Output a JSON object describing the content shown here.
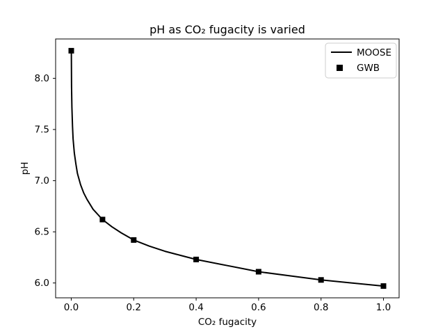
{
  "chart_data": {
    "type": "line",
    "title": "pH as CO₂ fugacity is varied",
    "xlabel": "CO₂ fugacity",
    "ylabel": "pH",
    "xlim": [
      -0.05,
      1.05
    ],
    "ylim": [
      5.855,
      8.385
    ],
    "grid": false,
    "background": "#ffffff",
    "foreground": "#000000",
    "xticks": [
      {
        "value": 0.0,
        "label": "0.0"
      },
      {
        "value": 0.2,
        "label": "0.2"
      },
      {
        "value": 0.4,
        "label": "0.4"
      },
      {
        "value": 0.6,
        "label": "0.6"
      },
      {
        "value": 0.8,
        "label": "0.8"
      },
      {
        "value": 1.0,
        "label": "1.0"
      }
    ],
    "yticks": [
      {
        "value": 6.0,
        "label": "6.0"
      },
      {
        "value": 6.5,
        "label": "6.5"
      },
      {
        "value": 7.0,
        "label": "7.0"
      },
      {
        "value": 7.5,
        "label": "7.5"
      },
      {
        "value": 8.0,
        "label": "8.0"
      }
    ],
    "legend": {
      "position": "upper right",
      "edge_color": "#cccccc",
      "entries": [
        {
          "name": "MOOSE",
          "type": "line"
        },
        {
          "name": "GWB",
          "type": "square-marker"
        }
      ]
    },
    "series": [
      {
        "name": "MOOSE",
        "type": "line",
        "color": "#000000",
        "points": [
          [
            0.0003,
            8.27
          ],
          [
            0.001,
            7.92
          ],
          [
            0.002,
            7.72
          ],
          [
            0.004,
            7.53
          ],
          [
            0.006,
            7.41
          ],
          [
            0.01,
            7.27
          ],
          [
            0.015,
            7.16
          ],
          [
            0.02,
            7.07
          ],
          [
            0.03,
            6.96
          ],
          [
            0.04,
            6.88
          ],
          [
            0.05,
            6.82
          ],
          [
            0.07,
            6.72
          ],
          [
            0.1,
            6.62
          ],
          [
            0.13,
            6.55
          ],
          [
            0.16,
            6.49
          ],
          [
            0.2,
            6.42
          ],
          [
            0.25,
            6.36
          ],
          [
            0.3,
            6.31
          ],
          [
            0.35,
            6.27
          ],
          [
            0.4,
            6.23
          ],
          [
            0.5,
            6.17
          ],
          [
            0.6,
            6.11
          ],
          [
            0.7,
            6.07
          ],
          [
            0.8,
            6.03
          ],
          [
            0.9,
            6.0
          ],
          [
            1.0,
            5.97
          ]
        ]
      },
      {
        "name": "GWB",
        "type": "scatter",
        "color": "#000000",
        "marker": "square",
        "points": [
          [
            0.0,
            8.27
          ],
          [
            0.1,
            6.62
          ],
          [
            0.2,
            6.42
          ],
          [
            0.4,
            6.23
          ],
          [
            0.6,
            6.11
          ],
          [
            0.8,
            6.03
          ],
          [
            1.0,
            5.97
          ]
        ]
      }
    ]
  }
}
